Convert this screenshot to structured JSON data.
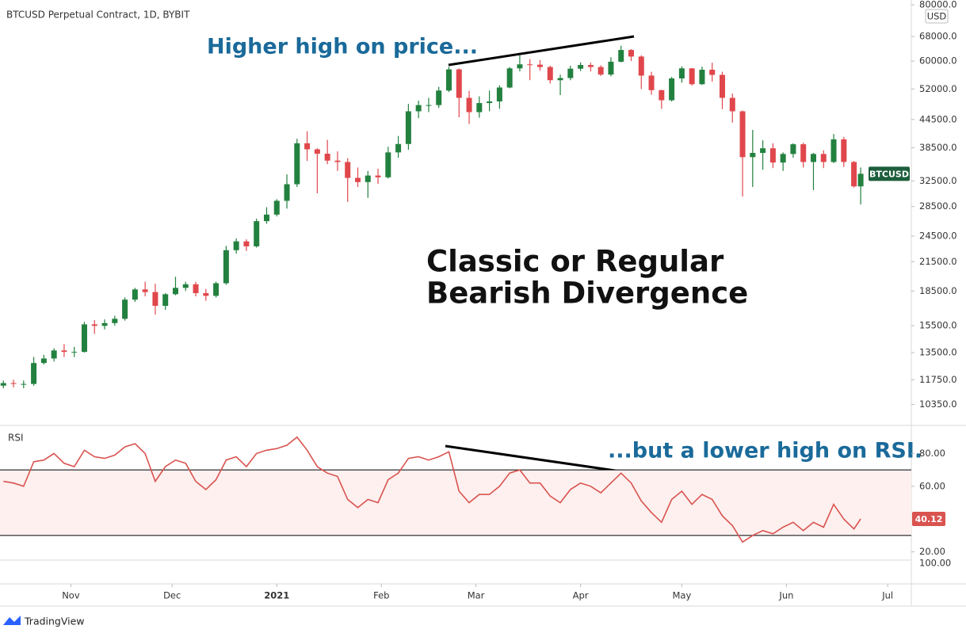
{
  "chart_data": [
    {
      "type": "candlestick",
      "title": "BTCUSD Perpetual Contract, 1D, BYBIT",
      "currency": "USD",
      "price_label": "BTCUSD",
      "annotations": [
        "Higher high on price...",
        "Classic or Regular",
        "Bearish Divergence"
      ],
      "up_color": "#22813f",
      "down_color": "#e0474c",
      "log_scale": true,
      "grid": false,
      "x": [
        -20,
        -17,
        -14,
        -11,
        -8,
        -5,
        -2,
        1,
        4,
        7,
        10,
        13,
        16,
        19,
        22,
        25,
        28,
        31,
        34,
        37,
        40,
        43,
        46,
        49,
        52,
        55,
        58,
        61,
        64,
        67,
        70,
        73,
        76,
        79,
        82,
        85,
        88,
        91,
        94,
        97,
        100,
        103,
        106,
        109,
        112,
        115,
        118,
        121,
        124,
        127,
        130,
        133,
        136,
        139,
        142,
        145,
        148,
        151,
        154,
        157,
        160,
        163,
        166,
        169,
        172,
        175,
        178,
        181,
        184,
        187,
        190,
        193,
        196,
        199,
        202,
        205,
        208,
        211,
        214,
        217,
        220,
        223,
        226,
        229,
        232,
        234
      ],
      "open": [
        11400,
        11550,
        11500,
        11500,
        12800,
        13100,
        13650,
        13550,
        13550,
        15600,
        15480,
        15700,
        16050,
        17700,
        18650,
        18400,
        17150,
        18200,
        18800,
        19150,
        18300,
        18050,
        19250,
        22800,
        23850,
        23250,
        26450,
        27350,
        29350,
        31950,
        39400,
        38200,
        37350,
        36050,
        35800,
        33000,
        32300,
        33400,
        33100,
        37600,
        39250,
        46400,
        47900,
        47900,
        51600,
        57500,
        49700,
        46200,
        48400,
        48800,
        52400,
        57800,
        59000,
        58900,
        58200,
        54400,
        55000,
        57700,
        58800,
        58200,
        56000,
        59800,
        63500,
        61400,
        55700,
        51700,
        49100,
        54900,
        57800,
        53300,
        57400,
        55900,
        49700,
        46400,
        36700,
        37500,
        38400,
        35700,
        37300,
        39200,
        35800,
        37300,
        35800,
        40200,
        35800,
        31600
      ],
      "high": [
        11700,
        11750,
        11700,
        13200,
        13350,
        13800,
        14100,
        13900,
        15800,
        15950,
        16000,
        16300,
        17900,
        18800,
        19400,
        19200,
        18300,
        19900,
        19400,
        19400,
        18700,
        19400,
        23300,
        24200,
        24100,
        26800,
        28400,
        29600,
        33600,
        40300,
        41900,
        38400,
        40100,
        37800,
        36500,
        34800,
        34200,
        34600,
        38700,
        40900,
        48200,
        49000,
        49700,
        52600,
        58300,
        57800,
        51500,
        50100,
        51600,
        53000,
        58200,
        61800,
        60600,
        60300,
        58600,
        56000,
        58600,
        59600,
        59500,
        58700,
        61200,
        64900,
        63800,
        61800,
        56800,
        51800,
        55300,
        58400,
        57900,
        58300,
        59500,
        56800,
        50800,
        46600,
        42200,
        40000,
        39400,
        37600,
        39400,
        39500,
        37500,
        38000,
        41300,
        40700,
        36000,
        34800
      ],
      "low": [
        11250,
        11300,
        11250,
        11400,
        12700,
        12900,
        13200,
        13200,
        13500,
        14850,
        15200,
        15500,
        15900,
        17500,
        18000,
        16400,
        16800,
        18100,
        18500,
        18000,
        17600,
        17900,
        19100,
        22400,
        22700,
        23100,
        26100,
        27100,
        28200,
        31500,
        36000,
        30500,
        35400,
        34200,
        29200,
        31500,
        29800,
        32000,
        32900,
        36600,
        38100,
        44800,
        46200,
        47200,
        51200,
        45000,
        43500,
        44900,
        46400,
        47000,
        52200,
        56900,
        54400,
        57100,
        53500,
        50400,
        54400,
        57000,
        56900,
        55600,
        55500,
        59600,
        60000,
        52000,
        50500,
        47000,
        48800,
        53700,
        52900,
        53100,
        54000,
        46900,
        43800,
        30000,
        31500,
        34400,
        34700,
        34200,
        36600,
        34800,
        31000,
        34700,
        35600,
        34900,
        31400,
        28800
      ],
      "close": [
        11550,
        11500,
        11500,
        12800,
        13100,
        13650,
        13550,
        13550,
        15600,
        15480,
        15700,
        16050,
        17700,
        18650,
        18400,
        17150,
        18200,
        18800,
        19150,
        18300,
        18050,
        19250,
        22800,
        23850,
        23250,
        26450,
        27350,
        29350,
        31950,
        39400,
        38200,
        37350,
        36050,
        35800,
        33000,
        32300,
        33400,
        33100,
        37600,
        39250,
        46400,
        47900,
        47900,
        51600,
        57500,
        49700,
        46200,
        48400,
        48800,
        52400,
        57800,
        59000,
        58900,
        58200,
        54400,
        55000,
        57700,
        58800,
        58200,
        56000,
        59800,
        63500,
        61400,
        55700,
        51700,
        49100,
        54900,
        57800,
        53300,
        57400,
        55900,
        49700,
        46400,
        36700,
        37500,
        38400,
        35700,
        37300,
        39200,
        35800,
        37300,
        35800,
        40200,
        35800,
        31600,
        33700
      ],
      "xlim": [
        -21,
        249
      ],
      "ylim": [
        9300,
        82000
      ],
      "yticks": [
        {
          "value": 80000,
          "label": "80000.0"
        },
        {
          "value": 68000,
          "label": "68000.0"
        },
        {
          "value": 60000,
          "label": "60000.0"
        },
        {
          "value": 52000,
          "label": "52000.0"
        },
        {
          "value": 44500,
          "label": "44500.0"
        },
        {
          "value": 38500,
          "label": "38500.0"
        },
        {
          "value": 32500,
          "label": "32500.0"
        },
        {
          "value": 28500,
          "label": "28500.0"
        },
        {
          "value": 24500,
          "label": "24500.0"
        },
        {
          "value": 21500,
          "label": "21500.0"
        },
        {
          "value": 18500,
          "label": "18500.0"
        },
        {
          "value": 15500,
          "label": "15500.0"
        },
        {
          "value": 13500,
          "label": "13500.0"
        },
        {
          "value": 11750,
          "label": "11750.0"
        },
        {
          "value": 10350,
          "label": "10350.0"
        }
      ]
    },
    {
      "type": "line",
      "title": "RSI",
      "color": "#d9534f",
      "annotation": "...but a lower high on RSI.",
      "last_label": "40.12",
      "bands": [
        70,
        30
      ],
      "lower_pane_label": "100.00",
      "x": [
        -20,
        -17,
        -14,
        -11,
        -8,
        -5,
        -2,
        1,
        4,
        7,
        10,
        13,
        16,
        19,
        22,
        25,
        28,
        31,
        34,
        37,
        40,
        43,
        46,
        49,
        52,
        55,
        58,
        61,
        64,
        67,
        70,
        73,
        76,
        79,
        82,
        85,
        88,
        91,
        94,
        97,
        100,
        103,
        106,
        109,
        112,
        115,
        118,
        121,
        124,
        127,
        130,
        133,
        136,
        139,
        142,
        145,
        148,
        151,
        154,
        157,
        160,
        163,
        166,
        169,
        172,
        175,
        178,
        181,
        184,
        187,
        190,
        193,
        196,
        199,
        202,
        205,
        208,
        211,
        214,
        217,
        220,
        223,
        226,
        229,
        232,
        234
      ],
      "values": [
        63,
        62,
        60,
        75,
        76,
        80,
        74,
        72,
        82,
        78,
        77,
        79,
        84,
        86,
        80,
        63,
        72,
        76,
        74,
        63,
        58,
        64,
        76,
        78,
        72,
        80,
        82,
        83,
        85,
        90,
        82,
        72,
        68,
        66,
        52,
        47,
        52,
        50,
        64,
        68,
        77,
        78,
        76,
        78,
        81,
        57,
        50,
        55,
        55,
        60,
        68,
        70,
        62,
        62,
        54,
        50,
        58,
        62,
        60,
        56,
        62,
        68,
        62,
        51,
        44,
        38,
        52,
        57,
        49,
        55,
        52,
        42,
        36,
        26,
        30,
        33,
        31,
        35,
        38,
        33,
        38,
        35,
        49,
        40,
        34,
        40.12
      ],
      "xlim": [
        -21,
        249
      ],
      "ylim": [
        0,
        100
      ],
      "yticks": [
        {
          "value": 80,
          "label": "80.00"
        },
        {
          "value": 60,
          "label": "60.00"
        },
        {
          "value": 20,
          "label": "20.00"
        }
      ],
      "xticks": [
        {
          "value": 0,
          "label": "Nov"
        },
        {
          "value": 30,
          "label": "Dec"
        },
        {
          "value": 61,
          "label": "2021"
        },
        {
          "value": 92,
          "label": "Feb"
        },
        {
          "value": 120,
          "label": "Mar"
        },
        {
          "value": 151,
          "label": "Apr"
        },
        {
          "value": 181,
          "label": "May"
        },
        {
          "value": 212,
          "label": "Jun"
        },
        {
          "value": 242,
          "label": "Jul"
        }
      ]
    }
  ],
  "footer": {
    "brand": "TradingView"
  }
}
